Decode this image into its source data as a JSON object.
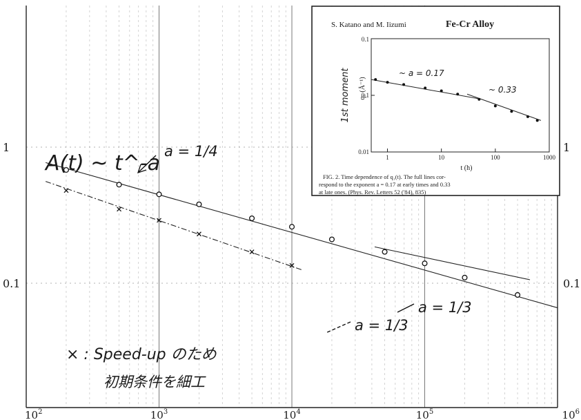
{
  "chart_data": {
    "type": "scatter",
    "x_scale": "log",
    "y_scale": "log",
    "xlim": [
      100,
      1000000
    ],
    "ylim": [
      0.01,
      1
    ],
    "x_ticks": [
      {
        "value": 100,
        "label": "10^2"
      },
      {
        "value": 1000,
        "label": "10^3"
      },
      {
        "value": 10000,
        "label": "10^4"
      },
      {
        "value": 100000,
        "label": "10^5"
      },
      {
        "value": 1000000,
        "label": "10^6"
      }
    ],
    "y_ticks": [
      {
        "value": 1,
        "label": "1"
      },
      {
        "value": 0.1,
        "label": "0.1"
      }
    ],
    "grid": true,
    "formula": "A(t) ~ t^-a",
    "series": [
      {
        "marker": "circle",
        "points": [
          {
            "x": 200,
            "y": 0.68
          },
          {
            "x": 500,
            "y": 0.53
          },
          {
            "x": 1000,
            "y": 0.45
          },
          {
            "x": 2000,
            "y": 0.38
          },
          {
            "x": 5000,
            "y": 0.3
          },
          {
            "x": 10000,
            "y": 0.26
          },
          {
            "x": 20000,
            "y": 0.21
          },
          {
            "x": 50000,
            "y": 0.17
          },
          {
            "x": 100000,
            "y": 0.14
          },
          {
            "x": 200000,
            "y": 0.11
          },
          {
            "x": 500000,
            "y": 0.082
          }
        ]
      },
      {
        "marker": "cross",
        "points": [
          {
            "x": 200,
            "y": 0.48
          },
          {
            "x": 500,
            "y": 0.35
          },
          {
            "x": 1000,
            "y": 0.29
          },
          {
            "x": 2000,
            "y": 0.23
          },
          {
            "x": 5000,
            "y": 0.17
          },
          {
            "x": 10000,
            "y": 0.135
          }
        ]
      }
    ],
    "fit_lines": [
      {
        "x": [
          140,
          1000000
        ],
        "y": [
          0.77,
          0.066
        ],
        "style": "solid"
      },
      {
        "x": [
          140,
          12000
        ],
        "y": [
          0.56,
          0.125
        ],
        "style": "dashdot"
      },
      {
        "x": [
          42000,
          620000
        ],
        "y": [
          0.185,
          0.106
        ],
        "style": "solid"
      }
    ],
    "annotations": [
      {
        "text": "a = 1/4"
      },
      {
        "text": "a = 1/3"
      },
      {
        "text": "a = 1/3"
      },
      {
        "text": "× : Speed-up のため"
      },
      {
        "text": "初期条件を細工"
      }
    ],
    "inset": {
      "type": "line",
      "x_scale": "log",
      "y_scale": "log",
      "header_authors": "S. Katano and M. Iizumi",
      "header_title": "Fe-Cr Alloy",
      "xlabel": "t (h)",
      "ylabel": "q₁ (Å⁻¹)",
      "ylabel_hand": "1st moment",
      "x_ticks": [
        "1",
        "10",
        "100",
        "1000"
      ],
      "y_ticks": [
        "0.1",
        "0.01"
      ],
      "y_ticks_top": [
        "0.1"
      ],
      "xlim": [
        0.5,
        1000
      ],
      "ylim": [
        0.01,
        1
      ],
      "points": [
        {
          "x": 0.6,
          "y": 0.19
        },
        {
          "x": 1,
          "y": 0.17
        },
        {
          "x": 2,
          "y": 0.155
        },
        {
          "x": 5,
          "y": 0.135
        },
        {
          "x": 10,
          "y": 0.12
        },
        {
          "x": 20,
          "y": 0.105
        },
        {
          "x": 50,
          "y": 0.085
        },
        {
          "x": 100,
          "y": 0.065
        },
        {
          "x": 200,
          "y": 0.052
        },
        {
          "x": 400,
          "y": 0.042
        },
        {
          "x": 600,
          "y": 0.036
        }
      ],
      "fit_lines": [
        {
          "x": [
            0.5,
            50
          ],
          "y": [
            0.19,
            0.087
          ]
        },
        {
          "x": [
            30,
            700
          ],
          "y": [
            0.105,
            0.036
          ]
        }
      ],
      "annotations": [
        {
          "text": "~ a = 0.17"
        },
        {
          "text": "~ 0.33"
        }
      ],
      "caption_lines": [
        "FIG. 2. Time dependence of q₁(t). The full lines cor-",
        "respond to the exponent a = 0.17 at early times and 0.33",
        "at late ones. (Phys. Rev. Letters 52 ('84), 835)"
      ]
    }
  }
}
